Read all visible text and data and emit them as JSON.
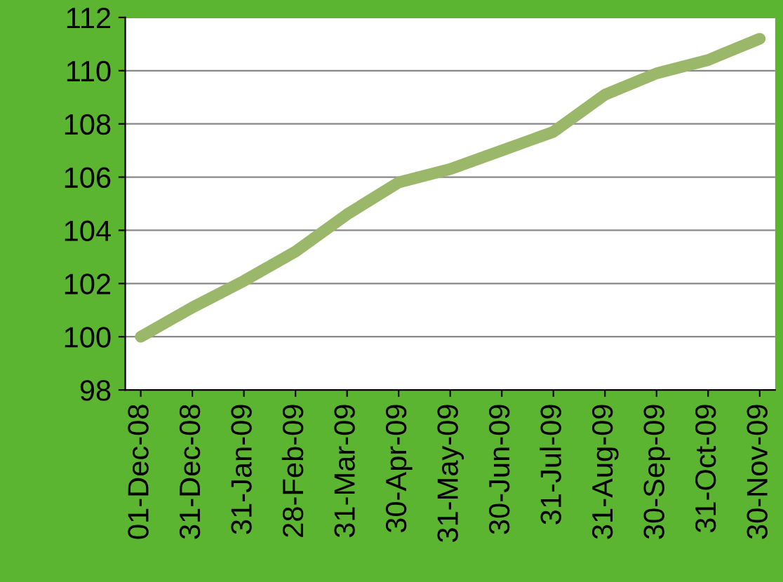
{
  "chart_data": {
    "type": "line",
    "categories": [
      "01-Dec-08",
      "31-Dec-08",
      "31-Jan-09",
      "28-Feb-09",
      "31-Mar-09",
      "30-Apr-09",
      "31-May-09",
      "30-Jun-09",
      "31-Jul-09",
      "31-Aug-09",
      "30-Sep-09",
      "31-Oct-09",
      "30-Nov-09"
    ],
    "series": [
      {
        "color": "#9bb86a",
        "values": [
          100.0,
          101.1,
          102.1,
          103.2,
          104.6,
          105.8,
          106.3,
          107.0,
          107.7,
          109.1,
          109.9,
          110.4,
          111.2
        ]
      }
    ],
    "ylim": [
      98,
      112
    ],
    "yticks": [
      98,
      100,
      102,
      104,
      106,
      108,
      110,
      112
    ],
    "grid": "y",
    "marker": "none",
    "line_style": "solid"
  }
}
